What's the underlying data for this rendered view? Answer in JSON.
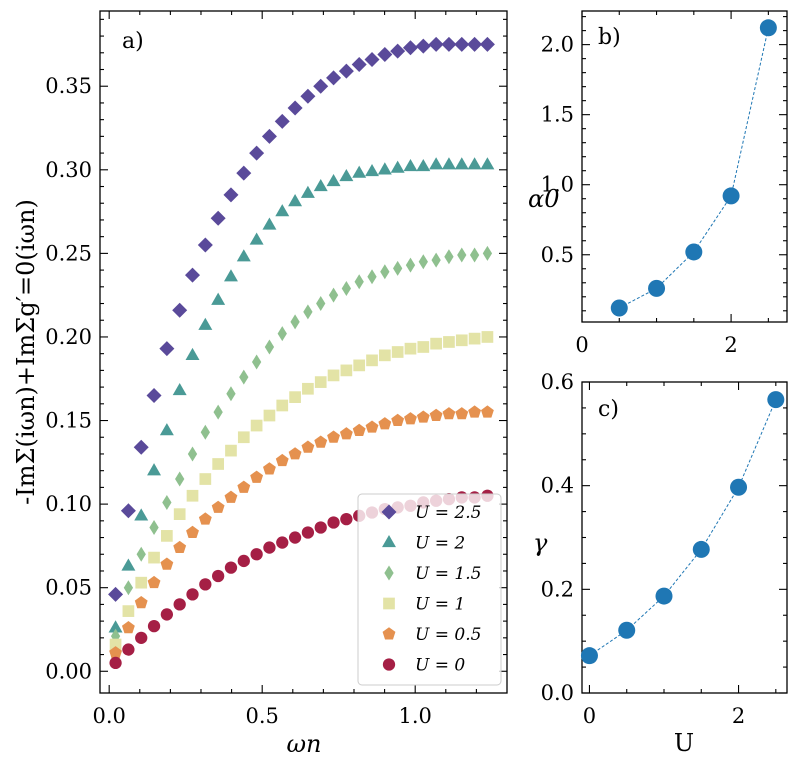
{
  "chart_data": [
    {
      "panel": "a)",
      "type": "scatter",
      "xlabel": "ωn",
      "ylabel": "-ImΣ(iωn)+ImΣg′=0(iωn)",
      "xlim": [
        -0.03,
        1.3
      ],
      "ylim": [
        -0.013,
        0.395
      ],
      "xticks": [
        "0.0",
        "0.5",
        "1.0"
      ],
      "yticks": [
        "0.00",
        "0.05",
        "0.10",
        "0.15",
        "0.20",
        "0.25",
        "0.30",
        "0.35"
      ],
      "legend_position": "bottom-right",
      "series": [
        {
          "name": "U = 2.5",
          "marker": "diamond",
          "color": "#5a4a9a",
          "values": [
            0.046,
            0.096,
            0.134,
            0.165,
            0.193,
            0.216,
            0.237,
            0.255,
            0.271,
            0.285,
            0.298,
            0.31,
            0.32,
            0.329,
            0.337,
            0.344,
            0.35,
            0.355,
            0.359,
            0.363,
            0.366,
            0.369,
            0.371,
            0.373,
            0.374,
            0.375,
            0.375,
            0.375,
            0.375,
            0.375
          ]
        },
        {
          "name": "U = 2",
          "marker": "triangle",
          "color": "#4a9a96",
          "values": [
            0.026,
            0.063,
            0.093,
            0.12,
            0.144,
            0.168,
            0.189,
            0.207,
            0.222,
            0.236,
            0.248,
            0.258,
            0.267,
            0.275,
            0.281,
            0.286,
            0.29,
            0.293,
            0.296,
            0.298,
            0.299,
            0.3,
            0.301,
            0.302,
            0.302,
            0.303,
            0.303,
            0.303,
            0.303,
            0.303
          ]
        },
        {
          "name": "U = 1.5",
          "marker": "thin-diamond",
          "color": "#8fc08f",
          "values": [
            0.021,
            0.05,
            0.07,
            0.086,
            0.101,
            0.115,
            0.13,
            0.143,
            0.155,
            0.166,
            0.176,
            0.185,
            0.194,
            0.202,
            0.209,
            0.215,
            0.22,
            0.225,
            0.229,
            0.233,
            0.236,
            0.239,
            0.241,
            0.243,
            0.245,
            0.246,
            0.248,
            0.249,
            0.249,
            0.25
          ]
        },
        {
          "name": "U = 1",
          "marker": "square",
          "color": "#e3e3a6",
          "values": [
            0.016,
            0.036,
            0.053,
            0.068,
            0.081,
            0.094,
            0.105,
            0.115,
            0.124,
            0.132,
            0.14,
            0.147,
            0.153,
            0.159,
            0.164,
            0.169,
            0.173,
            0.177,
            0.18,
            0.183,
            0.186,
            0.189,
            0.191,
            0.193,
            0.194,
            0.196,
            0.197,
            0.198,
            0.199,
            0.2
          ]
        },
        {
          "name": "U = 0.5",
          "marker": "pentagon",
          "color": "#e5914f",
          "values": [
            0.011,
            0.026,
            0.041,
            0.053,
            0.064,
            0.074,
            0.083,
            0.091,
            0.098,
            0.104,
            0.11,
            0.116,
            0.121,
            0.126,
            0.13,
            0.134,
            0.137,
            0.14,
            0.142,
            0.144,
            0.146,
            0.148,
            0.15,
            0.151,
            0.152,
            0.153,
            0.154,
            0.154,
            0.155,
            0.155
          ]
        },
        {
          "name": "U = 0",
          "marker": "circle",
          "color": "#a51f45",
          "values": [
            0.005,
            0.013,
            0.02,
            0.027,
            0.034,
            0.04,
            0.046,
            0.052,
            0.057,
            0.062,
            0.066,
            0.07,
            0.074,
            0.077,
            0.08,
            0.083,
            0.086,
            0.089,
            0.091,
            0.093,
            0.095,
            0.097,
            0.098,
            0.099,
            0.101,
            0.102,
            0.103,
            0.104,
            0.104,
            0.105
          ]
        }
      ],
      "x_start": 0.0209,
      "x_step": 0.0419
    },
    {
      "panel": "b)",
      "type": "line",
      "xlabel": "",
      "ylabel": "α0",
      "xlim": [
        0,
        2.75
      ],
      "ylim": [
        0.02,
        2.24
      ],
      "xticks": [
        "0",
        "2"
      ],
      "yticks": [
        "0.5",
        "1.0",
        "1.5",
        "2.0"
      ],
      "color": "#1f77b4",
      "x": [
        0.5,
        1.0,
        1.5,
        2.0,
        2.5
      ],
      "y": [
        0.12,
        0.26,
        0.52,
        0.92,
        2.12
      ]
    },
    {
      "panel": "c)",
      "type": "line",
      "xlabel": "U",
      "ylabel": "γ",
      "xlim": [
        -0.1,
        2.65
      ],
      "ylim": [
        0.0,
        0.6
      ],
      "xticks": [
        "0",
        "2"
      ],
      "yticks": [
        "0.0",
        "0.2",
        "0.4",
        "0.6"
      ],
      "color": "#1f77b4",
      "x": [
        0.0,
        0.5,
        1.0,
        1.5,
        2.0,
        2.5
      ],
      "y": [
        0.072,
        0.121,
        0.187,
        0.277,
        0.397,
        0.566
      ]
    }
  ]
}
